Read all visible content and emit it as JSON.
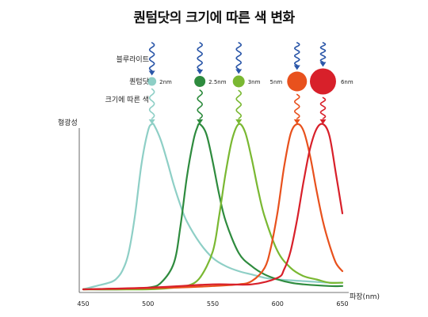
{
  "title": "퀀텀닷의 크기에 따른 색 변화",
  "labels": {
    "blue_light": "블루라이트",
    "quantum_dot": "퀀텀닷",
    "color_by_size": "크기에 따른 색",
    "y_axis": "형광성",
    "x_axis": "파장(nm)"
  },
  "dots": [
    {
      "size": "2nm",
      "color": "#8ecfc6"
    },
    {
      "size": "2.5nm",
      "color": "#2e8b3e"
    },
    {
      "size": "3nm",
      "color": "#7ab832"
    },
    {
      "size": "5nm",
      "color": "#e8511d"
    },
    {
      "size": "6nm",
      "color": "#d8202a"
    }
  ],
  "incoming_light_color": "#2a56a8",
  "chart_data": {
    "type": "line",
    "xlabel": "파장(nm)",
    "ylabel": "형광성",
    "xlim": [
      450,
      650
    ],
    "x_ticks": [
      450,
      500,
      550,
      600,
      650
    ],
    "ylim": [
      0,
      1
    ],
    "series": [
      {
        "color": "#8ecfc6",
        "x": [
          450,
          460,
          470,
          475,
          480,
          485,
          490,
          495,
          500,
          503,
          505,
          510,
          515,
          520,
          525,
          530,
          540,
          550,
          560,
          570,
          580,
          590,
          600,
          620,
          640,
          650
        ],
        "y": [
          0.0,
          0.02,
          0.04,
          0.06,
          0.11,
          0.22,
          0.45,
          0.76,
          0.96,
          1.0,
          0.99,
          0.9,
          0.77,
          0.63,
          0.51,
          0.41,
          0.28,
          0.19,
          0.14,
          0.11,
          0.09,
          0.07,
          0.06,
          0.05,
          0.04,
          0.04
        ]
      },
      {
        "color": "#2e8b3e",
        "x": [
          450,
          480,
          500,
          510,
          520,
          525,
          530,
          535,
          538,
          540,
          545,
          550,
          555,
          560,
          570,
          580,
          590,
          600,
          610,
          620,
          640,
          650
        ],
        "y": [
          0.0,
          0.0,
          0.01,
          0.04,
          0.16,
          0.38,
          0.68,
          0.9,
          0.98,
          1.0,
          0.94,
          0.77,
          0.57,
          0.41,
          0.22,
          0.14,
          0.09,
          0.06,
          0.04,
          0.03,
          0.02,
          0.02
        ]
      },
      {
        "color": "#7ab832",
        "x": [
          450,
          500,
          520,
          530,
          540,
          550,
          555,
          560,
          565,
          570,
          575,
          580,
          585,
          590,
          600,
          610,
          620,
          630,
          640,
          650
        ],
        "y": [
          0.0,
          0.0,
          0.01,
          0.02,
          0.07,
          0.23,
          0.45,
          0.71,
          0.91,
          1.0,
          0.95,
          0.79,
          0.6,
          0.44,
          0.23,
          0.13,
          0.08,
          0.06,
          0.04,
          0.04
        ]
      },
      {
        "color": "#e8511d",
        "x": [
          450,
          520,
          550,
          570,
          580,
          590,
          595,
          600,
          605,
          610,
          615,
          620,
          625,
          630,
          635,
          640,
          645,
          650
        ],
        "y": [
          0.0,
          0.01,
          0.02,
          0.03,
          0.05,
          0.13,
          0.26,
          0.47,
          0.74,
          0.94,
          1.0,
          0.96,
          0.81,
          0.6,
          0.41,
          0.27,
          0.16,
          0.11
        ]
      },
      {
        "color": "#d8202a",
        "x": [
          450,
          500,
          550,
          580,
          600,
          605,
          610,
          615,
          620,
          625,
          630,
          635,
          640,
          645,
          650
        ],
        "y": [
          0.0,
          0.01,
          0.03,
          0.03,
          0.07,
          0.12,
          0.23,
          0.42,
          0.65,
          0.85,
          0.97,
          1.0,
          0.93,
          0.7,
          0.46
        ]
      }
    ]
  }
}
